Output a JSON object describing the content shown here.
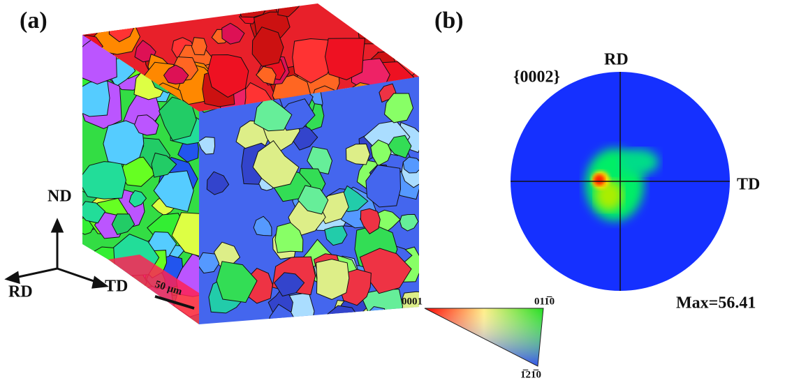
{
  "panel_a": {
    "label": "(a)",
    "axes": {
      "nd": "ND",
      "rd": "RD",
      "td": "TD"
    },
    "scale_bar": "50 μm",
    "ipf_key": {
      "corner_basal": "0001",
      "corner_prism1": "011̅0",
      "corner_prism2": "1̅21̅0"
    }
  },
  "panel_b": {
    "label": "(b)",
    "plane": "{0002}",
    "rd": "RD",
    "td": "TD",
    "max": "Max=56.41"
  }
}
